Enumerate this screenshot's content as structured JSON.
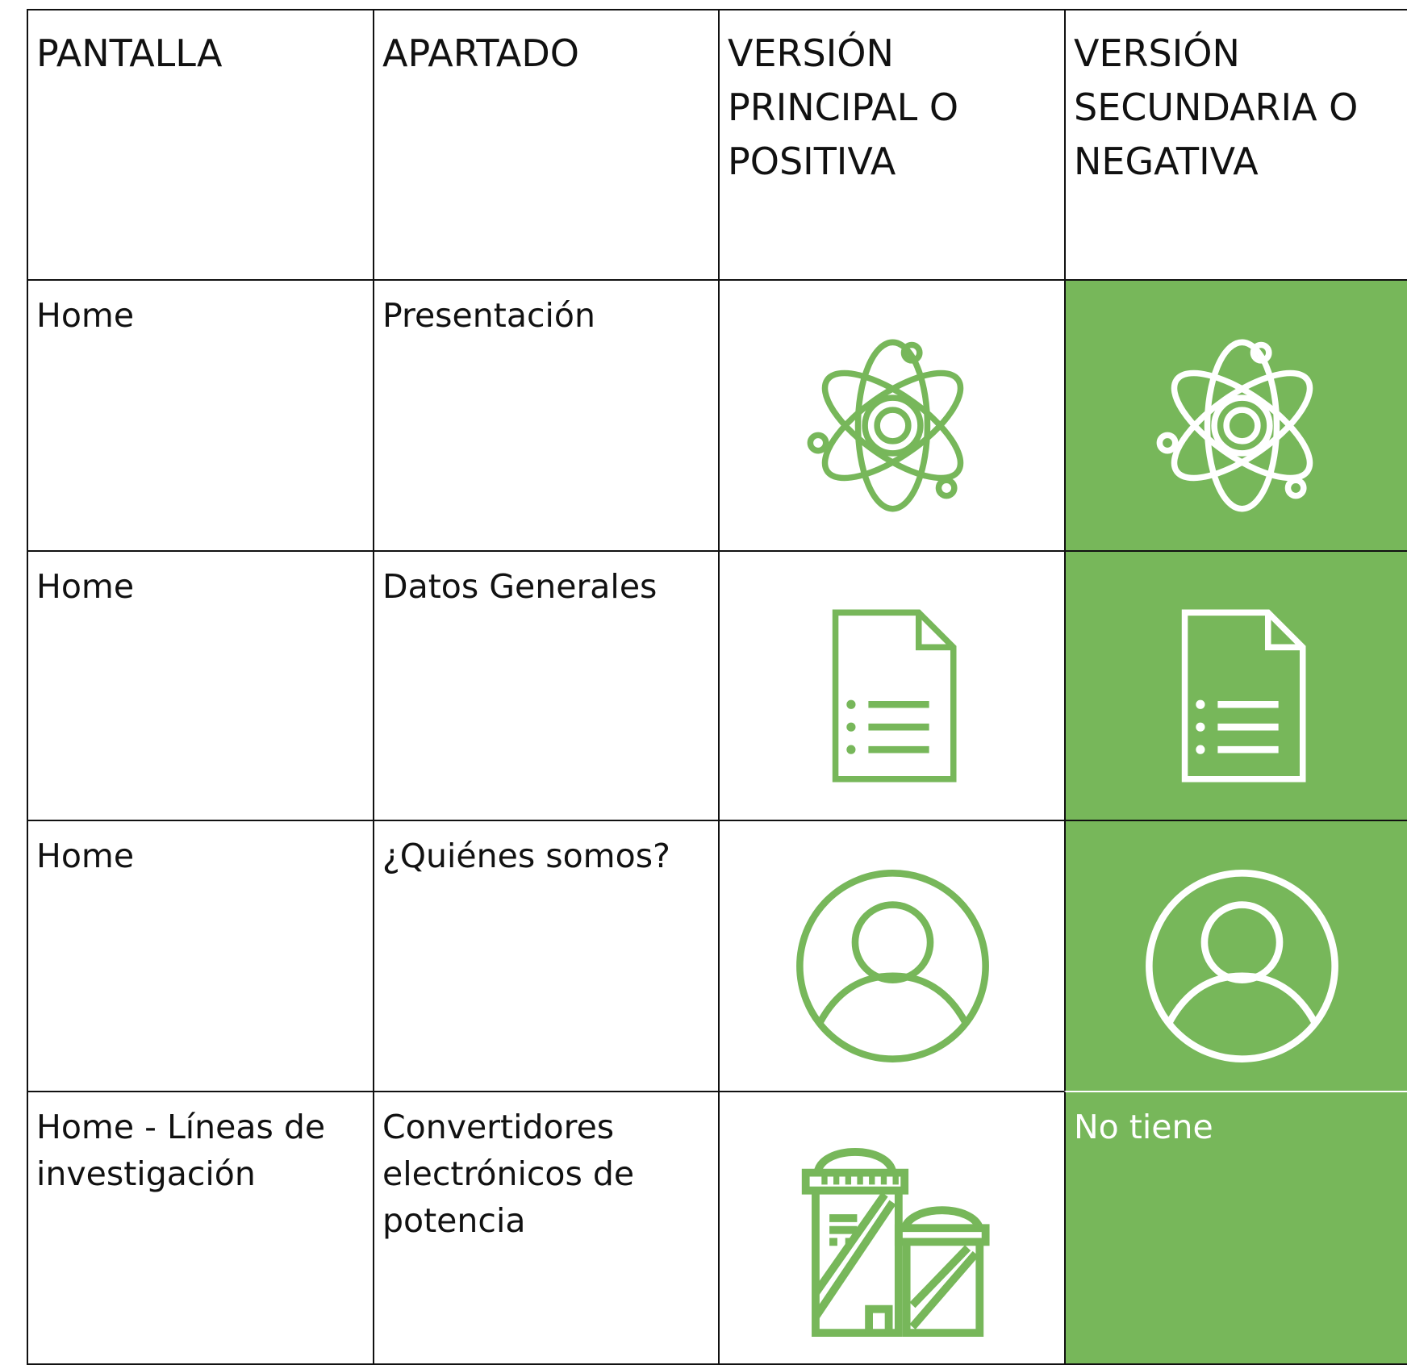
{
  "table": {
    "header": [
      "PANTALLA",
      "APARTADO",
      "VERSIÓN PRINCIPAL O POSITIVA",
      "VERSIÓN SECUNDARIA O NEGATIVA"
    ],
    "rows": [
      {
        "pantalla": "Home",
        "apartado": "Presentación"
      },
      {
        "pantalla": "Home",
        "apartado": "Datos Generales"
      },
      {
        "pantalla": "Home",
        "apartado": "¿Quiénes somos?"
      },
      {
        "pantalla": "Home - Líneas de investigación",
        "apartado": "Convertidores electrónicos de potencia",
        "negativa": "No tiene"
      }
    ]
  }
}
